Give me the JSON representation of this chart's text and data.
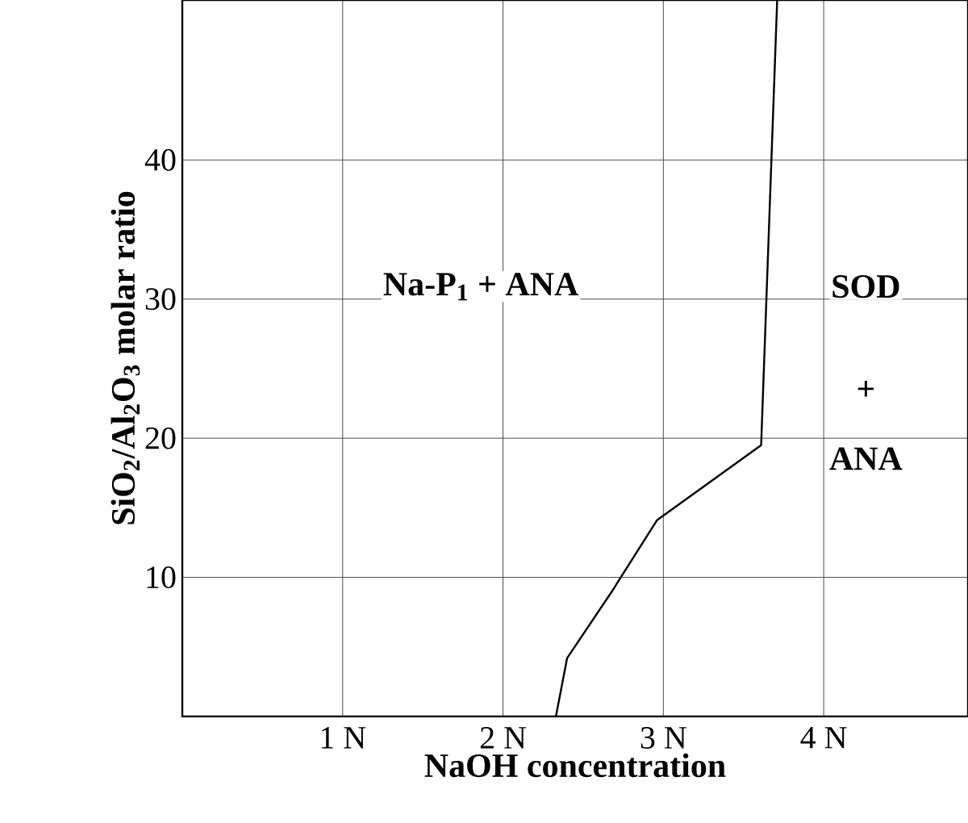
{
  "chart_data": {
    "type": "line",
    "xlabel": "NaOH concentration",
    "ylabel": "SiO$_{2}$/Al$_{2}$O$_{3}$ molar ratio",
    "x": [
      2.33,
      2.4,
      2.68,
      2.96,
      3.61,
      3.71
    ],
    "series": [
      {
        "color": "#000000",
        "values": [
          0,
          4.2,
          9.0,
          14.1,
          19.5,
          51.5
        ]
      }
    ],
    "xlim": [
      0,
      4.9
    ],
    "ylim": [
      0,
      51.5
    ],
    "xticks": [
      {
        "value": 1,
        "label": "1 N"
      },
      {
        "value": 2,
        "label": "2 N"
      },
      {
        "value": 3,
        "label": "3 N"
      },
      {
        "value": 4,
        "label": "4 N"
      }
    ],
    "yticks": [
      10,
      20,
      30,
      40
    ],
    "grid": true,
    "marker": "none",
    "line_style": "solid",
    "annotations": [
      "Na-P$_{1}$ + ANA",
      "SOD",
      "+",
      "ANA"
    ]
  }
}
